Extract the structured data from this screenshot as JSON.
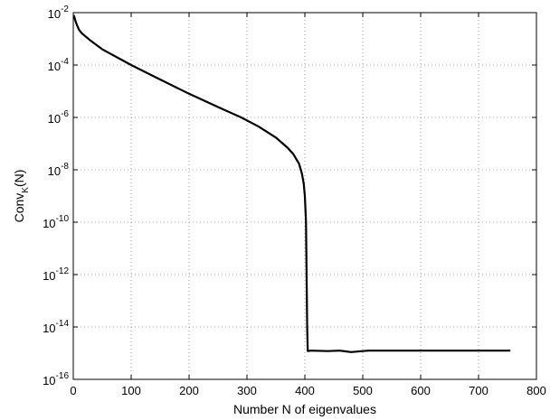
{
  "chart_data": {
    "type": "line",
    "title": "",
    "xlabel": "Number N of eigenvalues",
    "ylabel": {
      "base": "Conv",
      "subscript": "K",
      "suffix": "(N)"
    },
    "xlim": [
      0,
      800
    ],
    "ylim_log10": [
      -16,
      -2
    ],
    "y_scale": "log",
    "grid": true,
    "x_ticks": [
      0,
      100,
      200,
      300,
      400,
      500,
      600,
      700,
      800
    ],
    "x_tick_labels": [
      "0",
      "100",
      "200",
      "300",
      "400",
      "500",
      "600",
      "700",
      "800"
    ],
    "y_tick_exponents": [
      -2,
      -4,
      -6,
      -8,
      -10,
      -12,
      -14,
      -16
    ],
    "y_tick_labels": [
      {
        "base": "10",
        "exp": "-2"
      },
      {
        "base": "10",
        "exp": "-4"
      },
      {
        "base": "10",
        "exp": "-6"
      },
      {
        "base": "10",
        "exp": "-8"
      },
      {
        "base": "10",
        "exp": "-10"
      },
      {
        "base": "10",
        "exp": "-12"
      },
      {
        "base": "10",
        "exp": "-14"
      },
      {
        "base": "10",
        "exp": "-16"
      }
    ],
    "series": [
      {
        "color": "#000000",
        "x": [
          1,
          3,
          6,
          10,
          15,
          20,
          30,
          50,
          75,
          100,
          150,
          200,
          250,
          290,
          320,
          350,
          370,
          380,
          390,
          395,
          398,
          400,
          402,
          403,
          404,
          405,
          405,
          410,
          440,
          460,
          480,
          500,
          510,
          600,
          700,
          755
        ],
        "y": [
          0.008,
          0.0055,
          0.0035,
          0.0022,
          0.0016,
          0.0013,
          0.00085,
          0.0004,
          0.0002,
          0.0001,
          2.8e-05,
          8e-06,
          2.5e-06,
          1e-06,
          4.5e-07,
          1.7e-07,
          7e-08,
          4e-08,
          1.7e-08,
          7e-09,
          3e-09,
          1e-09,
          1e-10,
          1e-12,
          1e-14,
          1.2e-15,
          1.2e-15,
          1.25e-15,
          1.2e-15,
          1.25e-15,
          1.1e-15,
          1.2e-15,
          1.25e-15,
          1.25e-15,
          1.25e-15,
          1.25e-15
        ]
      }
    ]
  }
}
